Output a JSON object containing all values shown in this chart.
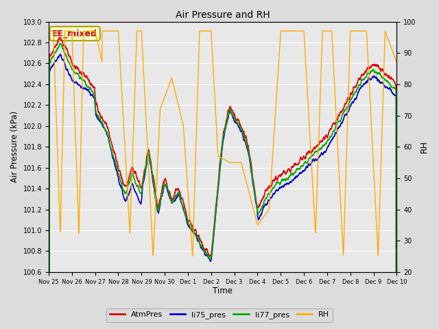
{
  "title": "Air Pressure and RH",
  "xlabel": "Time",
  "ylabel_left": "Air Pressure (kPa)",
  "ylabel_right": "RH",
  "ylim_left": [
    100.6,
    103.0
  ],
  "ylim_right": [
    20,
    100
  ],
  "yticks_left": [
    100.6,
    100.8,
    101.0,
    101.2,
    101.4,
    101.6,
    101.8,
    102.0,
    102.2,
    102.4,
    102.6,
    102.8,
    103.0
  ],
  "yticks_right": [
    20,
    30,
    40,
    50,
    60,
    70,
    80,
    90,
    100
  ],
  "background_color": "#dcdcdc",
  "plot_bg_color": "#e8e8e8",
  "annotation_text": "EE_mixed",
  "annotation_color": "#cc0000",
  "annotation_bg": "#ffffcc",
  "colors": {
    "AtmPres": "#dd0000",
    "li75_pres": "#0000cc",
    "li77_pres": "#00aa00",
    "RH": "#ffaa00"
  },
  "xtick_labels": [
    "Nov 25",
    "Nov 26",
    "Nov 27",
    "Nov 28",
    "Nov 29",
    "Nov 30",
    "Dec 1",
    "Dec 2",
    "Dec 3",
    "Dec 4",
    "Dec 5",
    "Dec 6",
    "Dec 7",
    "Dec 8",
    "Dec 9",
    "Dec 10"
  ],
  "n_points": 2000
}
